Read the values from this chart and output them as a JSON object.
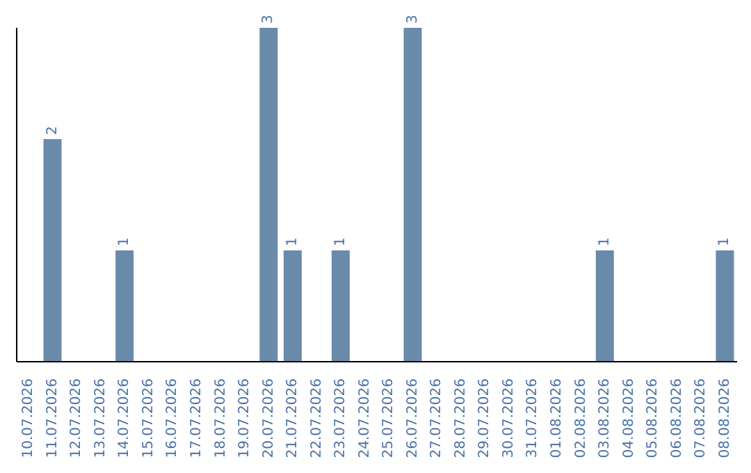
{
  "chart_data": {
    "type": "bar",
    "categories": [
      "10.07.2026",
      "11.07.2026",
      "12.07.2026",
      "13.07.2026",
      "14.07.2026",
      "15.07.2026",
      "16.07.2026",
      "17.07.2026",
      "18.07.2026",
      "19.07.2026",
      "20.07.2026",
      "21.07.2026",
      "22.07.2026",
      "23.07.2026",
      "24.07.2026",
      "25.07.2026",
      "26.07.2026",
      "27.07.2026",
      "28.07.2026",
      "29.07.2026",
      "30.07.2026",
      "31.07.2026",
      "01.08.2026",
      "02.08.2026",
      "03.08.2026",
      "04.08.2026",
      "05.08.2026",
      "06.08.2026",
      "07.08.2026",
      "08.08.2026"
    ],
    "values": [
      0,
      2,
      0,
      0,
      1,
      0,
      0,
      0,
      0,
      0,
      3,
      1,
      0,
      1,
      0,
      0,
      3,
      0,
      0,
      0,
      0,
      0,
      0,
      0,
      1,
      0,
      0,
      0,
      0,
      1
    ],
    "value_labels": [
      null,
      "2",
      null,
      null,
      "1",
      null,
      null,
      null,
      null,
      null,
      "3",
      "1",
      null,
      "1",
      null,
      null,
      "3",
      null,
      null,
      null,
      null,
      null,
      null,
      null,
      "1",
      null,
      null,
      null,
      null,
      "1"
    ],
    "color": "#6a8aaa",
    "tick_labels": "x",
    "grid": false,
    "legend": false
  }
}
